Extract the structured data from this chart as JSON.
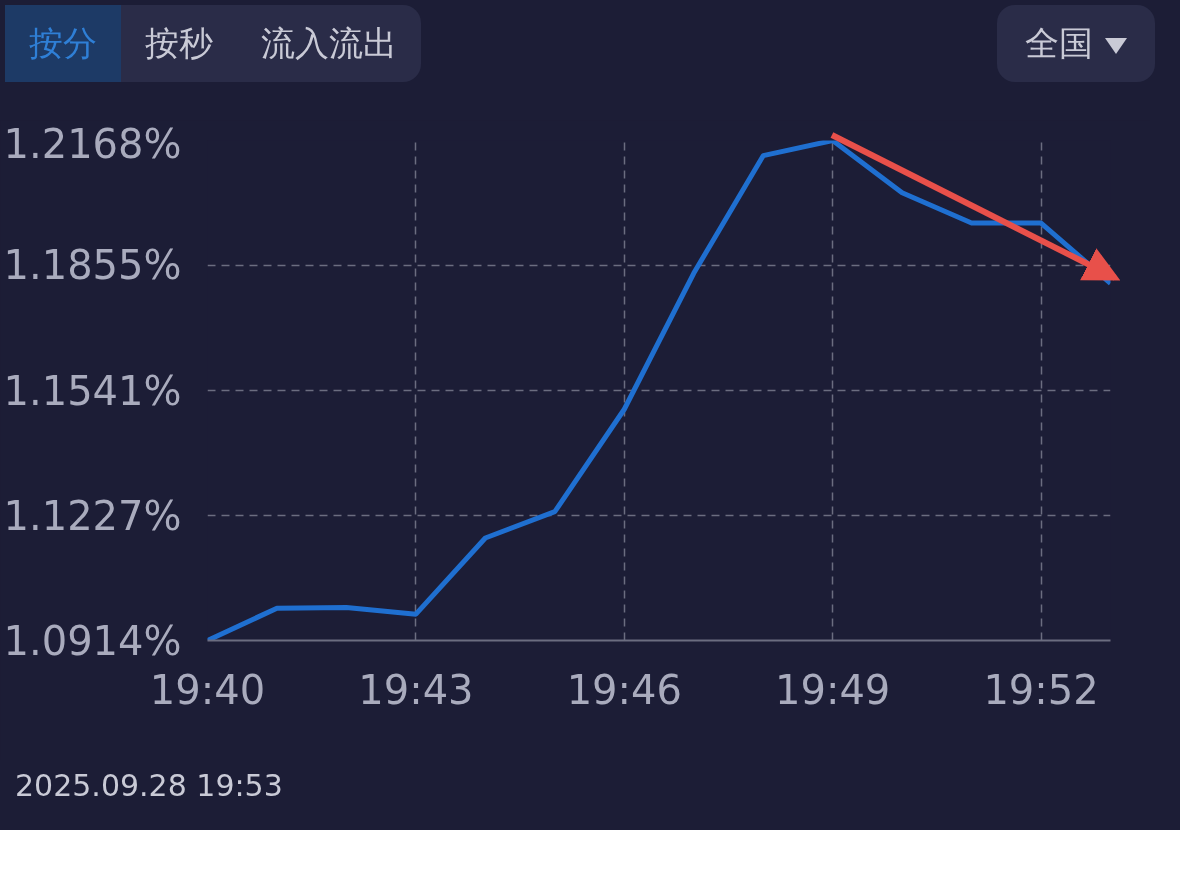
{
  "chart_data": {
    "type": "line",
    "x": [
      19.66667,
      19.68333,
      19.7,
      19.71667,
      19.73333,
      19.75,
      19.76667,
      19.78333,
      19.8,
      19.81667,
      19.83333,
      19.85,
      19.86667,
      19.88333
    ],
    "series": [
      {
        "color": "#1f6fd0",
        "values": [
          1.0914,
          1.0995,
          1.0997,
          1.098,
          1.1171,
          1.1237,
          1.1494,
          1.1835,
          1.213,
          1.2168,
          1.2037,
          1.1961,
          1.1961,
          1.181
        ]
      }
    ],
    "xlim": [
      19.66667,
      19.88333
    ],
    "xticks": [
      {
        "value": 19.66667,
        "label": "19:40"
      },
      {
        "value": 19.71667,
        "label": "19:43"
      },
      {
        "value": 19.76667,
        "label": "19:46"
      },
      {
        "value": 19.81667,
        "label": "19:49"
      },
      {
        "value": 19.86667,
        "label": "19:52"
      }
    ],
    "ylim": [
      1.0914,
      1.2168
    ],
    "yticks": [
      {
        "value": 1.0914,
        "label": "1.0914%"
      },
      {
        "value": 1.1227,
        "label": "1.1227%"
      },
      {
        "value": 1.1541,
        "label": "1.1541%"
      },
      {
        "value": 1.1855,
        "label": "1.1855%"
      },
      {
        "value": 1.2168,
        "label": "1.2168%"
      }
    ],
    "grid": true,
    "line_style": "solid",
    "marker": "none",
    "annotations": [
      "按分",
      "按秒",
      "流入流出",
      "全国",
      "2025.09.28 19:53"
    ]
  }
}
